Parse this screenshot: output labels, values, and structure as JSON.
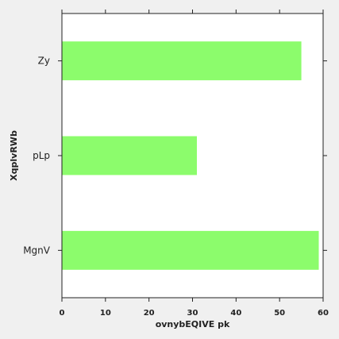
{
  "chart_data": {
    "type": "bar",
    "orientation": "horizontal",
    "categories": [
      "MgnV",
      "pLp",
      "Zy"
    ],
    "values": [
      59,
      31,
      55
    ],
    "xlabel": "ovnybEQIVE pk",
    "ylabel": "XqplvRWb",
    "xlim": [
      0,
      60
    ],
    "xticks": [
      0,
      10,
      20,
      30,
      40,
      50,
      60
    ],
    "grid": false,
    "bar_color": "#8cfc6c",
    "background_color": "#ffffff",
    "figure_color": "#f0f0f0"
  }
}
